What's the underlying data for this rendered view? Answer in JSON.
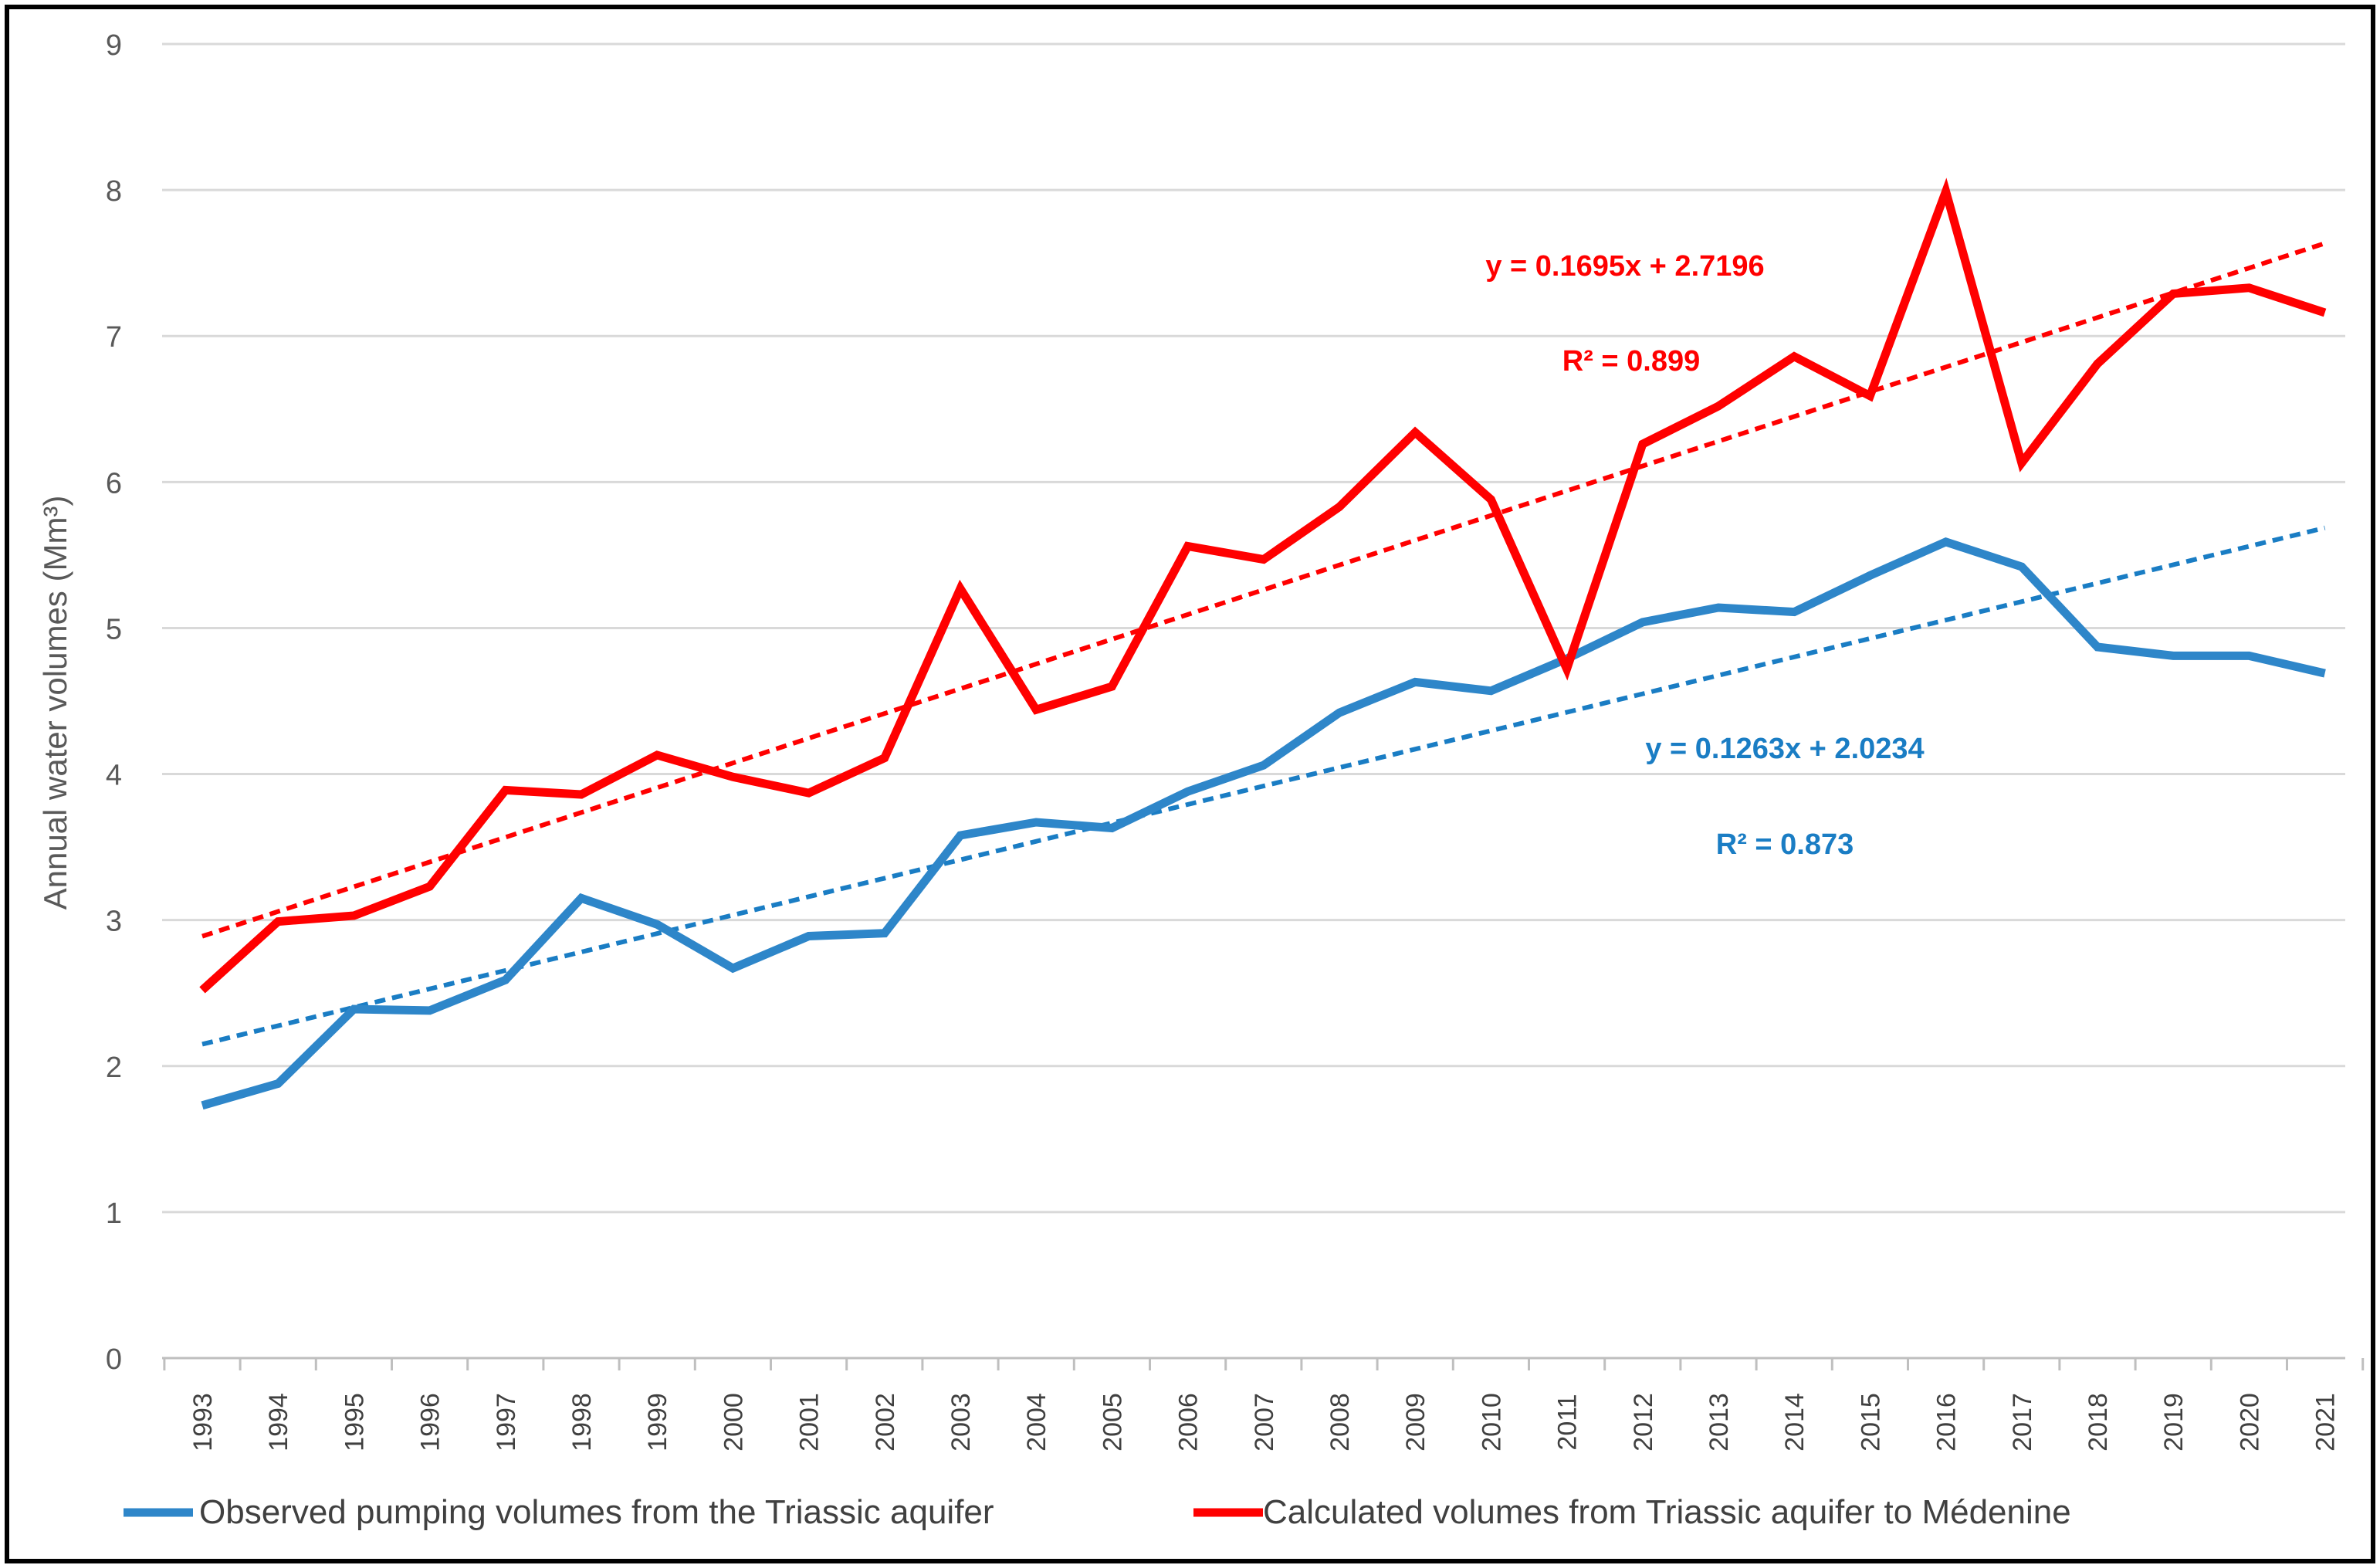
{
  "chart_data": {
    "type": "line",
    "title": "",
    "xlabel": "",
    "ylabel": "Annual water volumes (Mm³)",
    "ylim": [
      0,
      9
    ],
    "yticks": [
      "0",
      "1",
      "2",
      "3",
      "4",
      "5",
      "6",
      "7",
      "8",
      "9"
    ],
    "categories": [
      "1993",
      "1994",
      "1995",
      "1996",
      "1997",
      "1998",
      "1999",
      "2000",
      "2001",
      "2002",
      "2003",
      "2004",
      "2005",
      "2006",
      "2007",
      "2008",
      "2009",
      "2010",
      "2011",
      "2012",
      "2013",
      "2014",
      "2015",
      "2016",
      "2017",
      "2018",
      "2019",
      "2020",
      "2021"
    ],
    "grid": true,
    "legend_position": "bottom",
    "series": [
      {
        "name": "Observed pumping volumes from the Triassic aquifer",
        "color": "#2E86C9",
        "values": [
          1.73,
          1.88,
          2.39,
          2.38,
          2.59,
          3.15,
          2.97,
          2.67,
          2.89,
          2.91,
          3.58,
          3.67,
          3.63,
          3.88,
          4.06,
          4.42,
          4.63,
          4.57,
          4.79,
          5.04,
          5.14,
          5.11,
          5.36,
          5.59,
          5.42,
          4.87,
          4.81,
          4.81,
          4.69
        ]
      },
      {
        "name": "Calculated volumes from Triassic aquifer to Médenine",
        "color": "#FF0000",
        "values": [
          2.52,
          2.99,
          3.03,
          3.23,
          3.89,
          3.86,
          4.13,
          3.98,
          3.87,
          4.11,
          5.27,
          4.44,
          4.6,
          5.56,
          5.47,
          5.83,
          6.34,
          5.88,
          4.72,
          6.26,
          6.52,
          6.86,
          6.59,
          7.99,
          6.13,
          6.81,
          7.29,
          7.33,
          7.16
        ]
      }
    ],
    "trendlines": [
      {
        "series": "Observed pumping volumes from the Triassic aquifer",
        "slope": 0.1263,
        "intercept": 2.0234,
        "equation": "y = 0.1263x + 2.0234",
        "r2_label": "R² = 0.873",
        "color": "#1A7DC4"
      },
      {
        "series": "Calculated volumes from Triassic aquifer to Médenine",
        "slope": 0.1695,
        "intercept": 2.7196,
        "equation": "y = 0.1695x + 2.7196",
        "r2_label": "R² = 0.899",
        "color": "#FF0000"
      }
    ]
  }
}
